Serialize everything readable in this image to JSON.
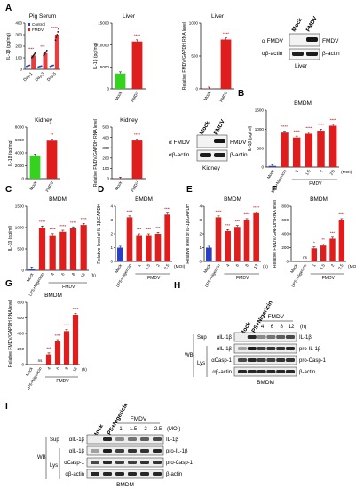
{
  "panels": {
    "A": "A",
    "B": "B",
    "C": "C",
    "D": "D",
    "E": "E",
    "F": "F",
    "G": "G",
    "H": "H",
    "I": "I"
  },
  "chart_data": [
    {
      "id": "A1",
      "type": "scatter",
      "title": "Pig Serum",
      "ylabel": "IL-1β (pg/mg)",
      "ylim": [
        0,
        400
      ],
      "yticks": [
        "0",
        "100",
        "200",
        "300",
        "400"
      ],
      "categories": [
        "Day-1",
        "Day-3",
        "Day-5"
      ],
      "series": [
        {
          "name": "Control",
          "color": "#2a3ec4",
          "values": [
            30,
            25,
            30
          ]
        },
        {
          "name": "FMDV",
          "color": "#e01d1d",
          "values": [
            120,
            140,
            300
          ]
        }
      ],
      "sig": [
        "****",
        "***",
        "****"
      ]
    },
    {
      "id": "A2",
      "type": "bar",
      "title": "Liver",
      "ylabel": "IL-1β (pg/mg)",
      "ylim": [
        0,
        15000
      ],
      "yticks": [
        "0",
        "5000",
        "10000",
        "15000"
      ],
      "categories": [
        "Mock",
        "FMDV"
      ],
      "values": [
        3500,
        10800
      ],
      "colors": [
        "#35d21f",
        "#e01d1d"
      ],
      "sig": [
        "",
        "****"
      ]
    },
    {
      "id": "A3",
      "type": "bar",
      "title": "Liver",
      "ylabel": "Relative FMDV/GAPDH RNA level",
      "ylim": [
        0,
        1000
      ],
      "yticks": [
        "0",
        "500",
        "1000"
      ],
      "categories": [
        "Mock",
        "FMDV"
      ],
      "values": [
        2,
        750
      ],
      "colors": [
        "#e01d1d",
        "#e01d1d"
      ],
      "sig": [
        "",
        "****"
      ]
    },
    {
      "id": "A5",
      "type": "bar",
      "title": "Kidney",
      "ylabel": "IL-1β (pg/mg)",
      "ylim": [
        0,
        8000
      ],
      "yticks": [
        "0",
        "2000",
        "4000",
        "6000",
        "8000"
      ],
      "categories": [
        "Mock",
        "FMDV"
      ],
      "values": [
        3600,
        5900
      ],
      "colors": [
        "#35d21f",
        "#e01d1d"
      ],
      "sig": [
        "",
        "**"
      ]
    },
    {
      "id": "A6",
      "type": "bar",
      "title": "Kidney",
      "ylabel": "Relative FMDV/GAPDH RNA level",
      "ylim": [
        0,
        500
      ],
      "yticks": [
        "0",
        "100",
        "200",
        "300",
        "400",
        "500"
      ],
      "categories": [
        "Mock",
        "FMDV"
      ],
      "values": [
        2,
        370
      ],
      "colors": [
        "#e01d1d",
        "#e01d1d"
      ],
      "sig": [
        "",
        "****"
      ]
    },
    {
      "id": "B",
      "type": "bar",
      "title": "BMDM",
      "ylabel": "IL-1β (pg/ml)",
      "ylim": [
        0,
        1500
      ],
      "yticks": [
        "0",
        "500",
        "1000",
        "1500"
      ],
      "categories": [
        "Mock",
        "LPS+Nigericin",
        "1",
        "1.5",
        "2",
        "2.5"
      ],
      "values": [
        30,
        910,
        780,
        880,
        960,
        1090
      ],
      "colors": [
        "#2a3ec4",
        "#e01d1d",
        "#e01d1d",
        "#e01d1d",
        "#e01d1d",
        "#e01d1d"
      ],
      "sig": [
        "",
        "****",
        "****",
        "****",
        "****",
        "****"
      ],
      "group_label": "FMDV",
      "unit_label": "(MOI)"
    },
    {
      "id": "C",
      "type": "bar",
      "title": "BMDM",
      "ylabel": "IL-1β (pg/ml)",
      "ylim": [
        0,
        1500
      ],
      "yticks": [
        "0",
        "500",
        "1000",
        "1500"
      ],
      "categories": [
        "Mock",
        "LPS+Nigericin",
        "4",
        "6",
        "8",
        "12"
      ],
      "values": [
        40,
        1000,
        820,
        900,
        980,
        1060
      ],
      "colors": [
        "#2a3ec4",
        "#e01d1d",
        "#e01d1d",
        "#e01d1d",
        "#e01d1d",
        "#e01d1d"
      ],
      "sig": [
        "",
        "****",
        "****",
        "****",
        "****",
        "****"
      ],
      "group_label": "FMDV",
      "unit_label": "(h)"
    },
    {
      "id": "D",
      "type": "bar",
      "title": "BMDM",
      "ylabel": "Relative level of IL-1β/GAPDH",
      "ylim": [
        0,
        4
      ],
      "yticks": [
        "0",
        "1",
        "2",
        "3",
        "4"
      ],
      "categories": [
        "Mock",
        "LPS+Nigericin",
        "1",
        "1.5",
        "2",
        "2.5"
      ],
      "values": [
        1.0,
        3.2,
        1.9,
        1.9,
        2.0,
        3.4
      ],
      "colors": [
        "#2a3ec4",
        "#e01d1d",
        "#e01d1d",
        "#e01d1d",
        "#e01d1d",
        "#e01d1d"
      ],
      "sig": [
        "",
        "****",
        "***",
        "***",
        "***",
        "****"
      ],
      "group_label": "FMDV",
      "unit_label": "(MOI)"
    },
    {
      "id": "E",
      "type": "bar",
      "title": "BMDM",
      "ylabel": "Relative level of IL-1β/GAPDH",
      "ylim": [
        0,
        4
      ],
      "yticks": [
        "0",
        "1",
        "2",
        "3",
        "4"
      ],
      "categories": [
        "Mock",
        "LPS+Nigericin",
        "4",
        "6",
        "8",
        "12"
      ],
      "values": [
        1.0,
        3.2,
        2.2,
        2.5,
        3.0,
        3.5
      ],
      "colors": [
        "#2a3ec4",
        "#e01d1d",
        "#e01d1d",
        "#e01d1d",
        "#e01d1d",
        "#e01d1d"
      ],
      "sig": [
        "",
        "****",
        "***",
        "***",
        "****",
        "****"
      ],
      "group_label": "FMDV",
      "unit_label": "(h)"
    },
    {
      "id": "F",
      "type": "bar",
      "title": "BMDM",
      "ylabel": "Relative FMDV/GAPDH RNA level",
      "ylim": [
        0,
        800
      ],
      "yticks": [
        "0",
        "200",
        "400",
        "600",
        "800"
      ],
      "categories": [
        "Mock",
        "LPS+Nigericin",
        "1",
        "1.5",
        "2",
        "2.5"
      ],
      "values": [
        0,
        0,
        190,
        230,
        330,
        600
      ],
      "colors": [
        "#e01d1d",
        "#e01d1d",
        "#e01d1d",
        "#e01d1d",
        "#e01d1d",
        "#e01d1d"
      ],
      "sig": [
        "",
        "ns",
        "*",
        "**",
        "***",
        "****"
      ],
      "group_label": "FMDV",
      "unit_label": "(MOI)"
    },
    {
      "id": "G",
      "type": "bar",
      "title": "BMDM",
      "ylabel": "Relative FMDV/GAPDH RNA level",
      "ylim": [
        0,
        800
      ],
      "yticks": [
        "0",
        "200",
        "400",
        "600",
        "800"
      ],
      "categories": [
        "Mock",
        "LPS+Nigericin",
        "4",
        "6",
        "8",
        "12"
      ],
      "values": [
        0,
        0,
        130,
        300,
        430,
        640
      ],
      "colors": [
        "#e01d1d",
        "#e01d1d",
        "#e01d1d",
        "#e01d1d",
        "#e01d1d",
        "#e01d1d"
      ],
      "sig": [
        "",
        "ns",
        "***",
        "****",
        "****",
        "****"
      ],
      "group_label": "FMDV",
      "unit_label": "(h)"
    }
  ],
  "blots": {
    "liver": {
      "lanes": [
        "Mock",
        "FMDV"
      ],
      "left": [
        "α FMDV",
        "αβ-actin"
      ],
      "right": [
        "FMDV",
        "β-actin"
      ],
      "caption": "Liver"
    },
    "kidney": {
      "lanes": [
        "Mock",
        "FMDV"
      ],
      "left": [
        "α FMDV",
        "αβ-actin"
      ],
      "right": [
        "FMDV",
        "β-actin"
      ],
      "caption": "Kidney"
    },
    "H": {
      "lanes": [
        "Mock",
        "LPS+Nigericin"
      ],
      "fmdv": "FMDV",
      "times": [
        "4",
        "6",
        "8",
        "12"
      ],
      "unit": "(h)",
      "sup": "Sup",
      "wb": "WB",
      "lys": "Lys",
      "left": [
        "αIL-1β",
        "αIL-1β",
        "αCasp-1",
        "αβ-actin"
      ],
      "right": [
        "IL-1β",
        "pro-IL-1β",
        "pro-Casp-1",
        "β-actin"
      ],
      "caption": "BMDM"
    },
    "I": {
      "lanes": [
        "Mock",
        "LPS+Nigericin"
      ],
      "fmdv": "FMDV",
      "times": [
        "1",
        "1.5",
        "2",
        "2.5"
      ],
      "unit": "(MOI)",
      "sup": "Sup",
      "wb": "WB",
      "lys": "Lys",
      "left": [
        "αIL-1β",
        "αIL-1β",
        "αCasp-1",
        "αβ-actin"
      ],
      "right": [
        "IL-1β",
        "pro-IL-1β",
        "pro-Casp-1",
        "β-actin"
      ],
      "caption": "BMDM"
    }
  }
}
